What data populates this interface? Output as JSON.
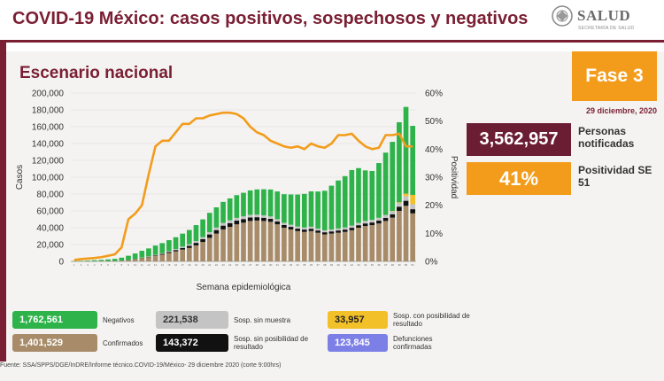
{
  "header": {
    "title": "COVID-19 México: casos positivos, sospechosos y negativos",
    "logo_text": "SALUD",
    "logo_sub": "SECRETARÍA DE SALUD"
  },
  "subtitle": "Escenario nacional",
  "fase": "Fase 3",
  "date": "29 diciembre, 2020",
  "stats": {
    "notificadas_value": "3,562,957",
    "notificadas_label": "Personas notificadas",
    "positividad_value": "41%",
    "positividad_label": "Positividad SE 51"
  },
  "legend": [
    {
      "value": "1,762,561",
      "label": "Negativos",
      "color": "#2db34a"
    },
    {
      "value": "221,538",
      "label": "Sosp. sin muestra",
      "color": "#c4c4c4"
    },
    {
      "value": "33,957",
      "label": "Sosp. con posibilidad de resultado",
      "color": "#f2c029"
    },
    {
      "value": "1,401,529",
      "label": "Confirmados",
      "color": "#a88c6a"
    },
    {
      "value": "143,372",
      "label": "Sosp. sin posibilidad de resultado",
      "color": "#111111"
    },
    {
      "value": "123,845",
      "label": "Defunciones confirmadas",
      "color": "#7c7fe6"
    }
  ],
  "footer": "Fuente: SSA/SPPS/DGE/InDRE/Informe técnico.COVID-19/México- 29 diciembre 2020 (corte 9:00hrs)",
  "chart_data": {
    "type": "bar",
    "xlabel": "Semana epidemiológica",
    "ylabel": "Casos",
    "y2label": "Positividad",
    "ylim": [
      0,
      200000
    ],
    "y2lim": [
      0,
      60
    ],
    "yticks": [
      "0",
      "20,000",
      "40,000",
      "60,000",
      "80,000",
      "100,000",
      "120,000",
      "140,000",
      "160,000",
      "180,000",
      "200,000"
    ],
    "y2ticks": [
      "0%",
      "10%",
      "20%",
      "30%",
      "40%",
      "50%",
      "60%"
    ],
    "stacked": true,
    "colors": {
      "confirmados": "#a88c6a",
      "sin_posibilidad": "#111111",
      "sin_muestra": "#c4c4c4",
      "con_posibilidad": "#f2c029",
      "negativos": "#2db34a",
      "positividad": "#f39c1c"
    },
    "series": [
      {
        "key": "confirmados",
        "values": [
          50,
          100,
          150,
          200,
          300,
          400,
          500,
          800,
          1500,
          2500,
          4000,
          5000,
          6500,
          8000,
          10000,
          12000,
          14000,
          16000,
          19000,
          23000,
          28000,
          33000,
          38000,
          41000,
          44000,
          46000,
          48000,
          48500,
          48000,
          47000,
          44000,
          40000,
          38000,
          36000,
          35000,
          36000,
          34000,
          32000,
          33000,
          34000,
          35000,
          37000,
          40000,
          42000,
          43000,
          45000,
          48000,
          52000,
          60000,
          66000,
          57000
        ]
      },
      {
        "key": "sin_posibilidad",
        "values": [
          0,
          0,
          0,
          0,
          0,
          0,
          0,
          50,
          100,
          200,
          300,
          500,
          700,
          900,
          1200,
          1500,
          2000,
          2500,
          3000,
          3500,
          4000,
          4200,
          4500,
          4500,
          4400,
          4300,
          4200,
          4000,
          3800,
          3600,
          3400,
          3200,
          3000,
          2900,
          2800,
          2800,
          2700,
          2600,
          2600,
          2700,
          2800,
          2900,
          3000,
          3100,
          3200,
          3400,
          3600,
          4000,
          5000,
          6000,
          5000
        ]
      },
      {
        "key": "sin_muestra",
        "values": [
          0,
          0,
          0,
          0,
          0,
          0,
          0,
          50,
          100,
          200,
          300,
          400,
          600,
          800,
          1000,
          1200,
          1500,
          1800,
          2100,
          2400,
          2700,
          3000,
          3200,
          3300,
          3300,
          3200,
          3100,
          3000,
          2900,
          2800,
          2700,
          2600,
          2500,
          2500,
          2400,
          2400,
          2300,
          2300,
          2300,
          2400,
          2500,
          2600,
          2800,
          3000,
          3200,
          3400,
          3600,
          3800,
          4500,
          5500,
          6000
        ]
      },
      {
        "key": "con_posibilidad",
        "values": [
          0,
          0,
          0,
          0,
          0,
          0,
          0,
          0,
          0,
          0,
          0,
          0,
          0,
          0,
          0,
          0,
          0,
          0,
          0,
          0,
          0,
          0,
          0,
          0,
          0,
          0,
          0,
          0,
          0,
          0,
          0,
          0,
          0,
          0,
          0,
          0,
          0,
          0,
          0,
          0,
          0,
          0,
          0,
          0,
          0,
          0,
          0,
          200,
          800,
          3000,
          11000
        ]
      },
      {
        "key": "negativos",
        "values": [
          300,
          500,
          800,
          1200,
          1500,
          2000,
          2500,
          3500,
          5000,
          6500,
          8000,
          9500,
          11000,
          12000,
          13000,
          14000,
          15500,
          17000,
          19000,
          21000,
          23000,
          24000,
          25000,
          26000,
          27000,
          28000,
          29000,
          30000,
          31000,
          32000,
          33000,
          34000,
          36000,
          38000,
          40000,
          42000,
          44000,
          47000,
          52000,
          57000,
          61000,
          66000,
          65000,
          60000,
          58000,
          65000,
          74000,
          82000,
          95000,
          103000,
          82000
        ]
      },
      {
        "key": "positividad",
        "type": "line",
        "values": [
          0.5,
          0.8,
          1,
          1.2,
          1.5,
          2,
          2.5,
          5,
          15,
          17,
          20,
          31,
          41,
          43,
          43,
          46,
          49,
          49,
          51,
          51,
          52,
          52.5,
          53,
          53,
          52.5,
          51,
          48,
          46,
          45,
          43,
          42,
          41,
          40.5,
          41,
          40,
          42,
          41,
          40.5,
          42,
          45,
          45,
          45.5,
          43,
          41,
          40,
          40.5,
          45,
          45,
          45.5,
          41,
          41
        ]
      }
    ]
  }
}
